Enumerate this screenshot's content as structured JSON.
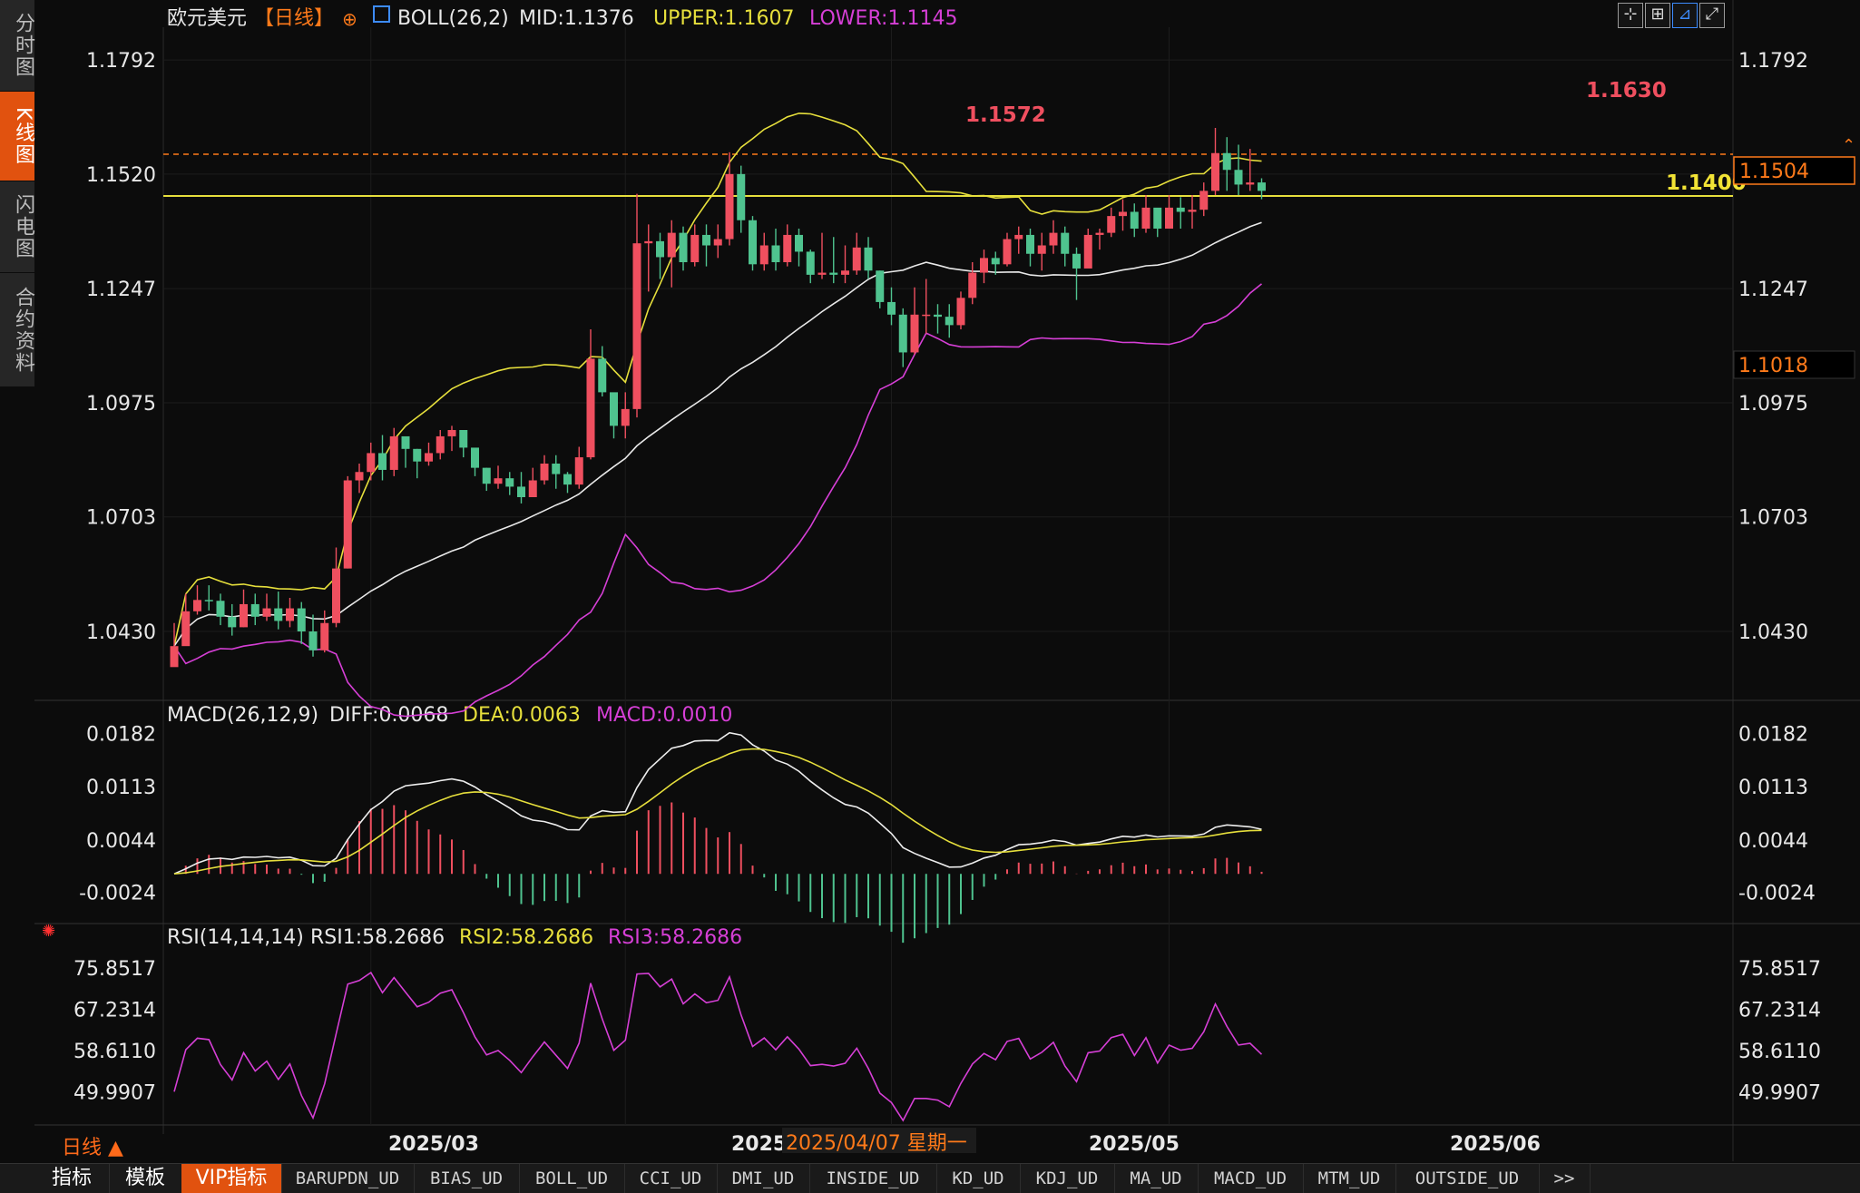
{
  "chart_title": "欧元美元",
  "period_tag": "【日线】",
  "boll": {
    "label": "BOLL(26,2)",
    "mid": "MID:1.1376",
    "upper": "UPPER:1.1607",
    "lower": "LOWER:1.1145"
  },
  "macd_header": {
    "label": "MACD(26,12,9)",
    "diff": "DIFF:0.0068",
    "dea": "DEA:0.0063",
    "macd": "MACD:0.0010"
  },
  "rsi_header": {
    "label": "RSI(14,14,14)",
    "rsi1": "RSI1:58.2686",
    "rsi2": "RSI2:58.2686",
    "rsi3": "RSI3:58.2686"
  },
  "side_tabs": [
    "分时图",
    "K线图",
    "闪电图",
    "合约资料"
  ],
  "toolbar_icons": [
    "crosshair-icon",
    "layout-icon",
    "line-indicator-icon",
    "fullscreen-icon"
  ],
  "price_ticks": [
    "1.1792",
    "1.1520",
    "1.1247",
    "1.0975",
    "1.0703",
    "1.0430"
  ],
  "macd_ticks": [
    "0.0182",
    "0.0113",
    "0.0044",
    "-0.0024"
  ],
  "rsi_ticks": [
    "75.8517",
    "67.2314",
    "58.6110",
    "49.9907"
  ],
  "labels": {
    "high1": "1.1572",
    "high2": "1.1630",
    "level": "1.1400",
    "current_price": "1.1504",
    "cursor_price": "1.1018"
  },
  "x_axis": {
    "m1": "2025/03",
    "m2": "2025",
    "cursor_date": "2025/04/07 星期一",
    "m3": "2025/05",
    "m4": "2025/06"
  },
  "period_button": "日线 ▲",
  "bottom_tabs": [
    "指标",
    "模板",
    "VIP指标",
    "BARUPDN_UD",
    "BIAS_UD",
    "BOLL_UD",
    "CCI_UD",
    "DMI_UD",
    "INSIDE_UD",
    "KD_UD",
    "KDJ_UD",
    "MA_UD",
    "MACD_UD",
    "MTM_UD",
    "OUTSIDE_UD",
    ">>"
  ],
  "colors": {
    "up": "#ef4f5f",
    "down": "#4fc38f",
    "upper": "#e6df3c",
    "mid": "#e8e8e8",
    "lower": "#d63fd6",
    "dea": "#e6df3c",
    "rsi": "#d63fd6",
    "accent": "#ff7a1a"
  },
  "chart_data": {
    "type": "candlestick",
    "title": "欧元美元",
    "ylim": [
      1.027,
      1.187
    ],
    "closes": [
      1.0395,
      1.0478,
      1.0505,
      1.0503,
      1.0465,
      1.044,
      1.0495,
      1.0465,
      1.0485,
      1.0455,
      1.0485,
      1.043,
      1.0385,
      1.045,
      1.058,
      1.079,
      1.081,
      1.0855,
      1.0815,
      1.0895,
      1.0865,
      1.0835,
      1.0855,
      1.0895,
      1.091,
      1.0868,
      1.082,
      1.0782,
      1.0795,
      1.0775,
      1.075,
      1.079,
      1.083,
      1.0805,
      1.078,
      1.0845,
      1.108,
      1.1,
      1.092,
      1.096,
      1.1355,
      1.136,
      1.1322,
      1.138,
      1.131,
      1.1375,
      1.135,
      1.1365,
      1.152,
      1.141,
      1.1305,
      1.135,
      1.131,
      1.1375,
      1.1335,
      1.128,
      1.1285,
      1.128,
      1.129,
      1.1345,
      1.129,
      1.1215,
      1.1185,
      1.1095,
      1.1185,
      1.1185,
      1.118,
      1.116,
      1.1225,
      1.1285,
      1.132,
      1.1305,
      1.1365,
      1.1375,
      1.133,
      1.135,
      1.138,
      1.133,
      1.1295,
      1.1375,
      1.138,
      1.142,
      1.143,
      1.139,
      1.144,
      1.139,
      1.144,
      1.143,
      1.1435,
      1.148,
      1.157,
      1.153,
      1.1495,
      1.15,
      1.148
    ],
    "highs": [
      1.045,
      1.052,
      1.054,
      1.054,
      1.052,
      1.0495,
      1.053,
      1.052,
      1.052,
      1.0525,
      1.051,
      1.05,
      1.047,
      1.048,
      1.063,
      1.08,
      1.083,
      1.088,
      1.0898,
      1.0915,
      1.089,
      1.0865,
      1.088,
      1.091,
      1.092,
      1.0895,
      1.086,
      1.082,
      1.0825,
      1.081,
      1.081,
      1.082,
      1.085,
      1.085,
      1.081,
      1.087,
      1.115,
      1.111,
      1.096,
      1.1,
      1.1473,
      1.14,
      1.138,
      1.141,
      1.1395,
      1.14,
      1.14,
      1.14,
      1.1572,
      1.154,
      1.142,
      1.138,
      1.139,
      1.14,
      1.139,
      1.134,
      1.138,
      1.137,
      1.135,
      1.138,
      1.137,
      1.129,
      1.125,
      1.12,
      1.125,
      1.127,
      1.121,
      1.121,
      1.124,
      1.131,
      1.134,
      1.1335,
      1.138,
      1.1395,
      1.139,
      1.138,
      1.141,
      1.1395,
      1.1345,
      1.139,
      1.139,
      1.144,
      1.146,
      1.145,
      1.147,
      1.142,
      1.147,
      1.1465,
      1.147,
      1.15,
      1.163,
      1.1608,
      1.159,
      1.158,
      1.151
    ],
    "lows": [
      1.0355,
      1.045,
      1.047,
      1.048,
      1.0445,
      1.042,
      1.044,
      1.0445,
      1.0455,
      1.0435,
      1.044,
      1.04,
      1.037,
      1.038,
      1.044,
      1.058,
      1.076,
      1.079,
      1.079,
      1.08,
      1.082,
      1.0795,
      1.0825,
      1.084,
      1.086,
      1.0845,
      1.08,
      1.0765,
      1.077,
      1.0755,
      1.0735,
      1.075,
      1.078,
      1.077,
      1.076,
      1.077,
      1.084,
      1.099,
      1.089,
      1.089,
      1.094,
      1.124,
      1.127,
      1.125,
      1.129,
      1.13,
      1.13,
      1.132,
      1.135,
      1.138,
      1.129,
      1.129,
      1.129,
      1.13,
      1.13,
      1.126,
      1.127,
      1.126,
      1.126,
      1.128,
      1.127,
      1.12,
      1.116,
      1.106,
      1.109,
      1.114,
      1.114,
      1.113,
      1.115,
      1.121,
      1.126,
      1.128,
      1.13,
      1.133,
      1.13,
      1.129,
      1.133,
      1.13,
      1.122,
      1.13,
      1.134,
      1.137,
      1.1385,
      1.137,
      1.138,
      1.137,
      1.141,
      1.139,
      1.139,
      1.142,
      1.147,
      1.148,
      1.147,
      1.148,
      1.146
    ],
    "macd_ylim": [
      -0.0055,
      0.0192
    ],
    "rsi_ylim": [
      44,
      80
    ]
  }
}
